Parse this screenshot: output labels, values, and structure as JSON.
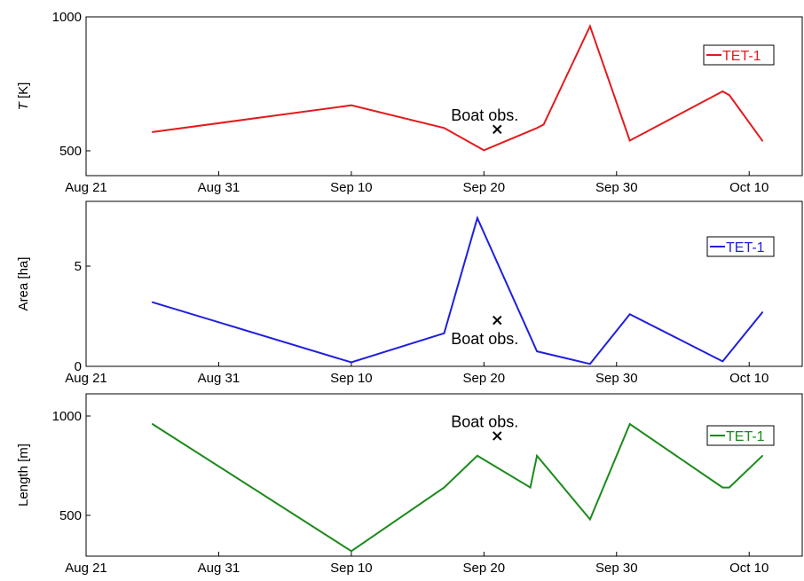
{
  "chart_data": [
    {
      "type": "line",
      "ylabel": "T [K]",
      "ylabel_italic": "T",
      "ylabel_unit": " [K]",
      "xlim": [
        "2013-08-21",
        "2013-10-14"
      ],
      "ylim": [
        400,
        1000
      ],
      "x_ticks": [
        "Aug 21",
        "Aug 31",
        "Sep 10",
        "Sep 20",
        "Sep 30",
        "Oct 10"
      ],
      "y_ticks": [
        500,
        1000
      ],
      "series": [
        {
          "name": "TET-1",
          "color": "#e31a1c",
          "x": [
            "2013-08-26",
            "2013-09-10",
            "2013-09-17",
            "2013-09-20",
            "2013-09-24",
            "2013-09-24T12",
            "2013-09-28",
            "2013-10-01",
            "2013-10-08",
            "2013-10-08T12",
            "2013-10-11"
          ],
          "y": [
            570,
            670,
            585,
            502,
            585,
            598,
            965,
            538,
            722,
            708,
            537
          ]
        }
      ],
      "annotation": {
        "text": "Boat obs.",
        "x": "2013-09-21",
        "y": 580
      },
      "legend": {
        "position": "top-right",
        "label": "TET-1"
      }
    },
    {
      "type": "line",
      "ylabel": "Area [ha]",
      "xlim": [
        "2013-08-21",
        "2013-10-14"
      ],
      "ylim": [
        0,
        8
      ],
      "x_ticks": [
        "Aug 21",
        "Aug 31",
        "Sep 10",
        "Sep 20",
        "Sep 30",
        "Oct 10"
      ],
      "y_ticks": [
        0,
        5
      ],
      "series": [
        {
          "name": "TET-1",
          "color": "#1f1fe0",
          "x": [
            "2013-08-26",
            "2013-09-10",
            "2013-09-17",
            "2013-09-19T12",
            "2013-09-24",
            "2013-09-28",
            "2013-10-01",
            "2013-10-08",
            "2013-10-11"
          ],
          "y": [
            3.2,
            0.2,
            1.65,
            7.4,
            0.75,
            0.12,
            2.6,
            0.25,
            2.7
          ]
        }
      ],
      "annotation": {
        "text": "Boat obs.",
        "x": "2013-09-21",
        "y": 2.3
      },
      "legend": {
        "position": "top-right",
        "label": "TET-1"
      }
    },
    {
      "type": "line",
      "ylabel": "Length [m]",
      "xlim": [
        "2013-08-21",
        "2013-10-14"
      ],
      "ylim": [
        300,
        1100
      ],
      "x_ticks": [
        "Aug 21",
        "Aug 31",
        "Sep 10",
        "Sep 20",
        "Sep 30",
        "Oct 10"
      ],
      "y_ticks": [
        500,
        1000
      ],
      "series": [
        {
          "name": "TET-1",
          "color": "#1a8a1a",
          "x": [
            "2013-08-26",
            "2013-09-10",
            "2013-09-17",
            "2013-09-19T12",
            "2013-09-23T12",
            "2013-09-24",
            "2013-09-28",
            "2013-10-01",
            "2013-10-08",
            "2013-10-08T12",
            "2013-10-11"
          ],
          "y": [
            960,
            320,
            640,
            800,
            640,
            800,
            480,
            960,
            640,
            640,
            800
          ]
        }
      ],
      "annotation": {
        "text": "Boat obs.",
        "x": "2013-09-21",
        "y": 900
      },
      "legend": {
        "position": "top-right",
        "label": "TET-1"
      }
    }
  ]
}
